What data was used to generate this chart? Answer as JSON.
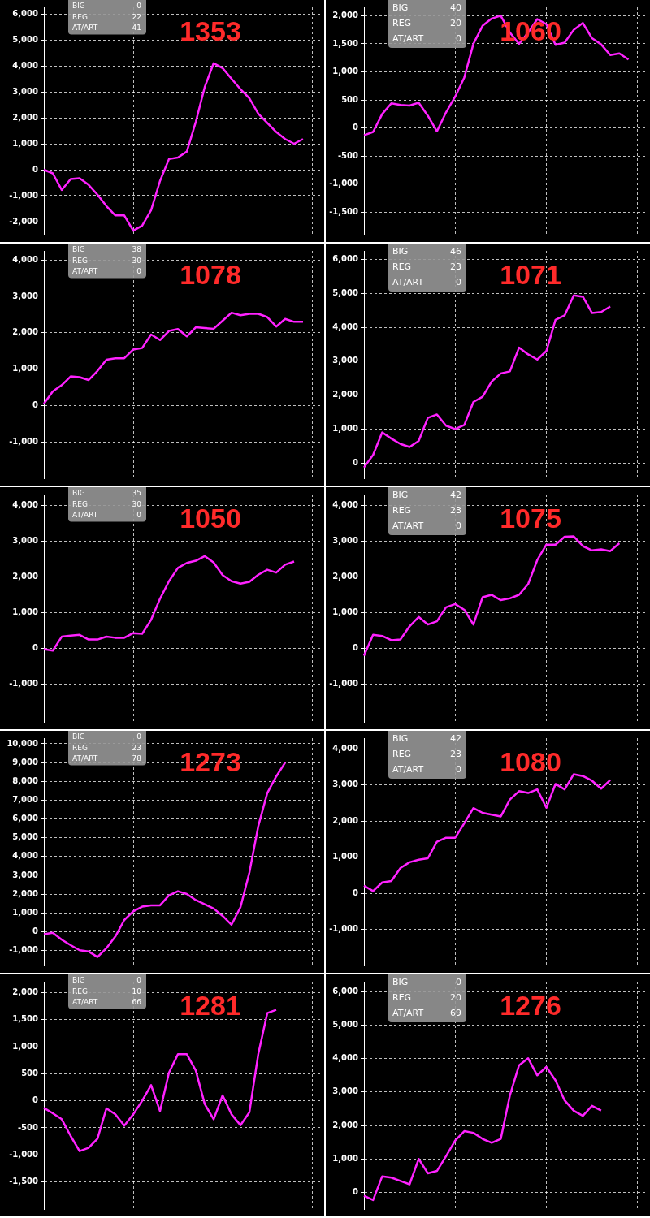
{
  "chart_data": [
    {
      "type": "line",
      "title": "1353",
      "annotations": [
        "BIG",
        "0",
        "REG",
        "22",
        "AT/ART",
        "41"
      ],
      "grid": true,
      "ylim": [
        -2500,
        6250
      ],
      "yticks": [
        {
          "value": -2000,
          "label": "-2,000"
        },
        {
          "value": -1000,
          "label": "-1,000"
        },
        0,
        {
          "value": 1000,
          "label": "1,000"
        },
        {
          "value": 2000,
          "label": "2,000"
        },
        {
          "value": 3000,
          "label": "3,000"
        },
        {
          "value": 4000,
          "label": "4,000"
        },
        {
          "value": 5000,
          "label": "5,000"
        },
        {
          "value": 6000,
          "label": "6,000"
        }
      ],
      "categories": [
        null,
        null,
        null,
        null,
        null,
        null,
        null,
        null,
        null,
        null,
        null,
        null,
        null,
        null,
        null,
        null,
        null,
        null,
        null,
        null,
        null,
        null,
        null,
        null,
        null,
        null,
        null,
        null,
        null,
        null,
        null,
        null
      ],
      "series": [
        {
          "color": "#ff22ff",
          "values": [
            0,
            -140,
            -780,
            -360,
            -330,
            -580,
            -960,
            -1400,
            -1760,
            -1760,
            -2350,
            -2150,
            -1560,
            -430,
            410,
            470,
            700,
            1840,
            3180,
            4100,
            3910,
            3500,
            3100,
            2750,
            2150,
            1800,
            1450,
            1180,
            1000,
            1180,
            null,
            null
          ]
        }
      ]
    },
    {
      "type": "line",
      "title": "1060",
      "annotations": [
        "BIG",
        "40",
        "REG",
        "20",
        "AT/ART",
        "0"
      ],
      "grid": true,
      "ylim": [
        -1900,
        2150
      ],
      "yticks": [
        {
          "value": -1500,
          "label": "-1,500"
        },
        {
          "value": -1000,
          "label": "-1,000"
        },
        -500,
        0,
        500,
        {
          "value": 1000,
          "label": "1,000"
        },
        {
          "value": 1500,
          "label": "1,500"
        },
        {
          "value": 2000,
          "label": "2,000"
        }
      ],
      "categories": [
        null,
        null,
        null,
        null,
        null,
        null,
        null,
        null,
        null,
        null,
        null,
        null,
        null,
        null,
        null,
        null,
        null,
        null,
        null,
        null,
        null,
        null,
        null,
        null,
        null,
        null,
        null,
        null,
        null,
        null,
        null,
        null
      ],
      "series": [
        {
          "color": "#ff22ff",
          "values": [
            -130,
            -70,
            250,
            440,
            410,
            400,
            450,
            220,
            -60,
            280,
            560,
            900,
            1500,
            1820,
            1950,
            2000,
            1700,
            1500,
            1700,
            1940,
            1850,
            1480,
            1520,
            1750,
            1870,
            1600,
            1490,
            1300,
            1330,
            1220,
            null,
            null
          ]
        }
      ]
    },
    {
      "type": "line",
      "title": "1078",
      "annotations": [
        "BIG",
        "38",
        "REG",
        "30",
        "AT/ART",
        "0"
      ],
      "grid": true,
      "ylim": [
        -2000,
        4250
      ],
      "yticks": [
        {
          "value": -1000,
          "label": "-1,000"
        },
        0,
        {
          "value": 1000,
          "label": "1,000"
        },
        {
          "value": 2000,
          "label": "2,000"
        },
        {
          "value": 3000,
          "label": "3,000"
        },
        {
          "value": 4000,
          "label": "4,000"
        }
      ],
      "categories": [
        null,
        null,
        null,
        null,
        null,
        null,
        null,
        null,
        null,
        null,
        null,
        null,
        null,
        null,
        null,
        null,
        null,
        null,
        null,
        null,
        null,
        null,
        null,
        null,
        null,
        null,
        null,
        null,
        null,
        null,
        null,
        null
      ],
      "series": [
        {
          "color": "#ff22ff",
          "values": [
            50,
            390,
            560,
            800,
            780,
            700,
            950,
            1260,
            1300,
            1300,
            1540,
            1580,
            1950,
            1800,
            2050,
            2100,
            1900,
            2150,
            2130,
            2110,
            2330,
            2550,
            2480,
            2520,
            2520,
            2430,
            2170,
            2380,
            2300,
            2300,
            null,
            null
          ]
        }
      ]
    },
    {
      "type": "line",
      "title": "1071",
      "annotations": [
        "BIG",
        "46",
        "REG",
        "23",
        "AT/ART",
        "0"
      ],
      "grid": true,
      "ylim": [
        -450,
        6250
      ],
      "yticks": [
        0,
        {
          "value": 1000,
          "label": "1,000"
        },
        {
          "value": 2000,
          "label": "2,000"
        },
        {
          "value": 3000,
          "label": "3,000"
        },
        {
          "value": 4000,
          "label": "4,000"
        },
        {
          "value": 5000,
          "label": "5,000"
        },
        {
          "value": 6000,
          "label": "6,000"
        }
      ],
      "categories": [
        null,
        null,
        null,
        null,
        null,
        null,
        null,
        null,
        null,
        null,
        null,
        null,
        null,
        null,
        null,
        null,
        null,
        null,
        null,
        null,
        null,
        null,
        null,
        null,
        null,
        null,
        null,
        null,
        null,
        null,
        null,
        null
      ],
      "series": [
        {
          "color": "#ff22ff",
          "values": [
            -130,
            240,
            900,
            720,
            560,
            470,
            650,
            1330,
            1430,
            1100,
            1000,
            1120,
            1800,
            1950,
            2400,
            2640,
            2700,
            3400,
            3200,
            3050,
            3300,
            4220,
            4350,
            4940,
            4900,
            4420,
            4450,
            4610,
            null,
            null,
            null,
            null
          ]
        }
      ]
    },
    {
      "type": "line",
      "title": "1050",
      "annotations": [
        "BIG",
        "35",
        "REG",
        "30",
        "AT/ART",
        "0"
      ],
      "grid": true,
      "ylim": [
        -2050,
        4300
      ],
      "yticks": [
        {
          "value": -1000,
          "label": "-1,000"
        },
        0,
        {
          "value": 1000,
          "label": "1,000"
        },
        {
          "value": 2000,
          "label": "2,000"
        },
        {
          "value": 3000,
          "label": "3,000"
        },
        {
          "value": 4000,
          "label": "4,000"
        }
      ],
      "categories": [
        null,
        null,
        null,
        null,
        null,
        null,
        null,
        null,
        null,
        null,
        null,
        null,
        null,
        null,
        null,
        null,
        null,
        null,
        null,
        null,
        null,
        null,
        null,
        null,
        null,
        null,
        null,
        null,
        null,
        null,
        null,
        null
      ],
      "series": [
        {
          "color": "#ff22ff",
          "values": [
            -20,
            -60,
            330,
            360,
            380,
            250,
            250,
            330,
            300,
            300,
            430,
            410,
            800,
            1390,
            1880,
            2250,
            2390,
            2450,
            2580,
            2400,
            2050,
            1880,
            1810,
            1860,
            2060,
            2200,
            2120,
            2340,
            2430,
            null,
            null,
            null
          ]
        }
      ]
    },
    {
      "type": "line",
      "title": "1075",
      "annotations": [
        "BIG",
        "42",
        "REG",
        "23",
        "AT/ART",
        "0"
      ],
      "grid": true,
      "ylim": [
        -2050,
        4300
      ],
      "yticks": [
        {
          "value": -1000,
          "label": "-1,000"
        },
        0,
        {
          "value": 1000,
          "label": "1,000"
        },
        {
          "value": 2000,
          "label": "2,000"
        },
        {
          "value": 3000,
          "label": "3,000"
        },
        {
          "value": 4000,
          "label": "4,000"
        }
      ],
      "categories": [
        null,
        null,
        null,
        null,
        null,
        null,
        null,
        null,
        null,
        null,
        null,
        null,
        null,
        null,
        null,
        null,
        null,
        null,
        null,
        null,
        null,
        null,
        null,
        null,
        null,
        null,
        null,
        null,
        null,
        null,
        null,
        null
      ],
      "series": [
        {
          "color": "#ff22ff",
          "values": [
            -200,
            380,
            350,
            230,
            250,
            620,
            880,
            670,
            760,
            1150,
            1240,
            1080,
            670,
            1430,
            1500,
            1350,
            1400,
            1500,
            1800,
            2470,
            2900,
            2900,
            3120,
            3130,
            2860,
            2740,
            2770,
            2720,
            2940,
            null,
            null,
            null
          ]
        }
      ]
    },
    {
      "type": "line",
      "title": "1273",
      "annotations": [
        "BIG",
        "0",
        "REG",
        "23",
        "AT/ART",
        "78"
      ],
      "grid": true,
      "ylim": [
        -1800,
        10300
      ],
      "yticks": [
        {
          "value": -1000,
          "label": "-1,000"
        },
        0,
        {
          "value": 1000,
          "label": "1,000"
        },
        {
          "value": 2000,
          "label": "2,000"
        },
        {
          "value": 3000,
          "label": "3,000"
        },
        {
          "value": 4000,
          "label": "4,000"
        },
        {
          "value": 5000,
          "label": "5,000"
        },
        {
          "value": 6000,
          "label": "6,000"
        },
        {
          "value": 7000,
          "label": "7,000"
        },
        {
          "value": 8000,
          "label": "8,000"
        },
        {
          "value": 9000,
          "label": "9,000"
        },
        {
          "value": 10000,
          "label": "10,000"
        }
      ],
      "categories": [
        null,
        null,
        null,
        null,
        null,
        null,
        null,
        null,
        null,
        null,
        null,
        null,
        null,
        null,
        null,
        null,
        null,
        null,
        null,
        null,
        null,
        null,
        null,
        null,
        null,
        null,
        null,
        null,
        null,
        null,
        null,
        null
      ],
      "series": [
        {
          "color": "#ff22ff",
          "values": [
            -140,
            -60,
            -430,
            -720,
            -990,
            -1050,
            -1350,
            -880,
            -260,
            620,
            1080,
            1330,
            1400,
            1400,
            1930,
            2150,
            2000,
            1680,
            1460,
            1230,
            840,
            370,
            1300,
            3150,
            5630,
            7380,
            8260,
            9000,
            null,
            null,
            null,
            null
          ]
        }
      ]
    },
    {
      "type": "line",
      "title": "1080",
      "annotations": [
        "BIG",
        "42",
        "REG",
        "23",
        "AT/ART",
        "0"
      ],
      "grid": true,
      "ylim": [
        -2000,
        4300
      ],
      "yticks": [
        {
          "value": -1000,
          "label": "-1,000"
        },
        0,
        {
          "value": 1000,
          "label": "1,000"
        },
        {
          "value": 2000,
          "label": "2,000"
        },
        {
          "value": 3000,
          "label": "3,000"
        },
        {
          "value": 4000,
          "label": "4,000"
        }
      ],
      "categories": [
        null,
        null,
        null,
        null,
        null,
        null,
        null,
        null,
        null,
        null,
        null,
        null,
        null,
        null,
        null,
        null,
        null,
        null,
        null,
        null,
        null,
        null,
        null,
        null,
        null,
        null,
        null,
        null,
        null,
        null,
        null,
        null
      ],
      "series": [
        {
          "color": "#ff22ff",
          "values": [
            210,
            60,
            300,
            340,
            700,
            860,
            930,
            970,
            1430,
            1540,
            1540,
            1940,
            2360,
            2230,
            2180,
            2130,
            2600,
            2830,
            2780,
            2880,
            2370,
            3030,
            2880,
            3300,
            3250,
            3120,
            2900,
            3140,
            null,
            null,
            null,
            null
          ]
        }
      ]
    },
    {
      "type": "line",
      "title": "1281",
      "annotations": [
        "BIG",
        "0",
        "REG",
        "10",
        "AT/ART",
        "66"
      ],
      "grid": true,
      "ylim": [
        -2000,
        2200
      ],
      "yticks": [
        {
          "value": -1500,
          "label": "-1,500"
        },
        {
          "value": -1000,
          "label": "-1,000"
        },
        -500,
        0,
        500,
        {
          "value": 1000,
          "label": "1,000"
        },
        {
          "value": 1500,
          "label": "1,500"
        },
        {
          "value": 2000,
          "label": "2,000"
        }
      ],
      "categories": [
        null,
        null,
        null,
        null,
        null,
        null,
        null,
        null,
        null,
        null,
        null,
        null,
        null,
        null,
        null,
        null,
        null,
        null,
        null,
        null,
        null,
        null,
        null,
        null,
        null,
        null,
        null,
        null,
        null,
        null,
        null,
        null
      ],
      "series": [
        {
          "color": "#ff22ff",
          "values": [
            -130,
            -230,
            -340,
            -650,
            -930,
            -870,
            -700,
            -140,
            -250,
            -460,
            -250,
            0,
            290,
            -190,
            520,
            860,
            860,
            560,
            -60,
            -340,
            100,
            -250,
            -450,
            -210,
            870,
            1620,
            1680,
            null,
            null,
            null,
            null,
            null
          ]
        }
      ]
    },
    {
      "type": "line",
      "title": "1276",
      "annotations": [
        "BIG",
        "0",
        "REG",
        "20",
        "AT/ART",
        "69"
      ],
      "grid": true,
      "ylim": [
        -500,
        6300
      ],
      "yticks": [
        0,
        {
          "value": 1000,
          "label": "1,000"
        },
        {
          "value": 2000,
          "label": "2,000"
        },
        {
          "value": 3000,
          "label": "3,000"
        },
        {
          "value": 4000,
          "label": "4,000"
        },
        {
          "value": 5000,
          "label": "5,000"
        },
        {
          "value": 6000,
          "label": "6,000"
        }
      ],
      "categories": [
        null,
        null,
        null,
        null,
        null,
        null,
        null,
        null,
        null,
        null,
        null,
        null,
        null,
        null,
        null,
        null,
        null,
        null,
        null,
        null,
        null,
        null,
        null,
        null,
        null,
        null,
        null,
        null,
        null,
        null,
        null,
        null
      ],
      "series": [
        {
          "color": "#ff22ff",
          "values": [
            -100,
            -230,
            480,
            440,
            340,
            240,
            1000,
            570,
            640,
            1080,
            1550,
            1830,
            1780,
            1600,
            1480,
            1600,
            2900,
            3800,
            4010,
            3500,
            3750,
            3350,
            2750,
            2440,
            2290,
            2590,
            2450,
            null,
            null,
            null,
            null,
            null
          ]
        }
      ]
    }
  ]
}
